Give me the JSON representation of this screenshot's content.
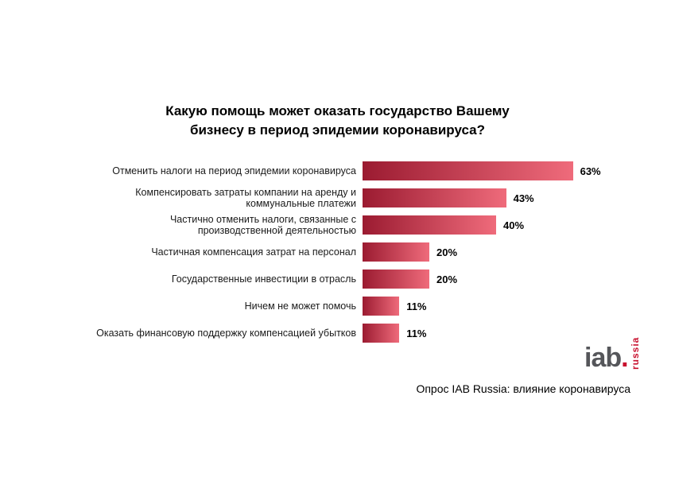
{
  "chart_data": {
    "type": "bar",
    "orientation": "horizontal",
    "title": "Какую помощь может оказать государство Вашему бизнесу в период эпидемии коронавируса?",
    "xlim": [
      0,
      70
    ],
    "grid": false,
    "legend": "none",
    "bar_gradient": [
      "#9b1b31",
      "#ef6b7b"
    ],
    "value_suffix": "%",
    "categories": [
      "Отменить налоги на период эпидемии коронавируса",
      "Компенсировать затраты компании на аренду и коммунальные платежи",
      "Частично отменить налоги, связанные с производственной деятельностью",
      "Частичная компенсация затрат на персонал",
      "Государственные инвестиции в отрасль",
      "Ничем не может помочь",
      "Оказать финансовую поддержку компенсацией убытков"
    ],
    "values": [
      63,
      43,
      40,
      20,
      20,
      11,
      11
    ],
    "rows": [
      {
        "label": "Отменить налоги на период эпидемии коронавируса",
        "value": 63,
        "pct": "63%"
      },
      {
        "label": "Компенсировать затраты компании на аренду и коммунальные платежи",
        "value": 43,
        "pct": "43%"
      },
      {
        "label": "Частично отменить налоги, связанные с производственной деятельностью",
        "value": 40,
        "pct": "40%"
      },
      {
        "label": "Частичная компенсация затрат на персонал",
        "value": 20,
        "pct": "20%"
      },
      {
        "label": "Государственные инвестиции в отрасль",
        "value": 20,
        "pct": "20%"
      },
      {
        "label": "Ничем не может помочь",
        "value": 11,
        "pct": "11%"
      },
      {
        "label": "Оказать финансовую поддержку компенсацией убытков",
        "value": 11,
        "pct": "11%"
      }
    ]
  },
  "logo": {
    "iab": "iab",
    "dot": ".",
    "vertical": "russia"
  },
  "caption": "Опрос IAB Russia: влияние коронавируса",
  "colors": {
    "bar_dark": "#9b1b31",
    "bar_light": "#ef6b7b",
    "logo_gray": "#55565a",
    "logo_red": "#c8102e"
  }
}
